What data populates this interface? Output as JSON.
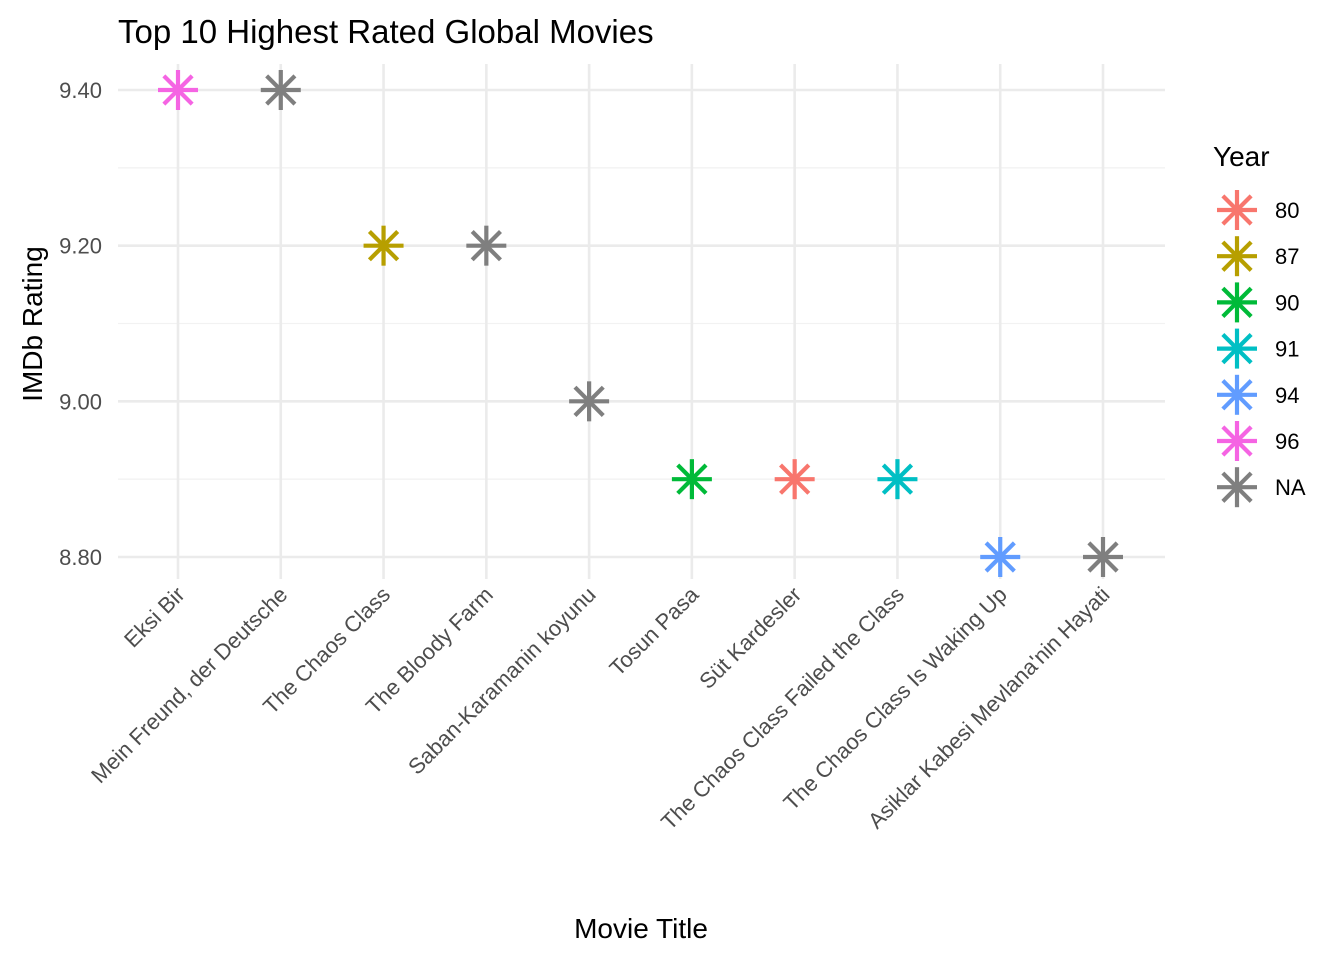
{
  "chart_data": {
    "type": "scatter",
    "title": "Top 10 Highest Rated Global Movies",
    "xlabel": "Movie Title",
    "ylabel": "IMDb Rating",
    "categories": [
      "Eksi Bir",
      "Mein Freund, der Deutsche",
      "The Chaos Class",
      "The Bloody Farm",
      "Saban-Karamanin koyunu",
      "Tosun Pasa",
      "Süt Kardesler",
      "The Chaos Class Failed the Class",
      "The Chaos Class Is Waking Up",
      "Asiklar Kabesi Mevlana'nin Hayati"
    ],
    "points": [
      {
        "x": "Eksi Bir",
        "y": 9.4,
        "year": "96"
      },
      {
        "x": "Mein Freund, der Deutsche",
        "y": 9.4,
        "year": "NA"
      },
      {
        "x": "The Chaos Class",
        "y": 9.2,
        "year": "87"
      },
      {
        "x": "The Bloody Farm",
        "y": 9.2,
        "year": "NA"
      },
      {
        "x": "Saban-Karamanin koyunu",
        "y": 9.0,
        "year": "NA"
      },
      {
        "x": "Tosun Pasa",
        "y": 8.9,
        "year": "90"
      },
      {
        "x": "Süt Kardesler",
        "y": 8.9,
        "year": "80"
      },
      {
        "x": "The Chaos Class Failed the Class",
        "y": 8.9,
        "year": "91"
      },
      {
        "x": "The Chaos Class Is Waking Up",
        "y": 8.8,
        "year": "94"
      },
      {
        "x": "Asiklar Kabesi Mevlana'nin Hayati",
        "y": 8.8,
        "year": "NA"
      }
    ],
    "yticks": [
      "8.80",
      "9.00",
      "9.20",
      "9.40"
    ],
    "ylim": [
      8.79,
      9.41
    ],
    "grid": true,
    "marker": "asterisk",
    "legend": {
      "title": "Year",
      "placement": "right",
      "entries": [
        {
          "label": "80",
          "color": "#F8766D"
        },
        {
          "label": "87",
          "color": "#B79F00"
        },
        {
          "label": "90",
          "color": "#00BA38"
        },
        {
          "label": "91",
          "color": "#00BFC4"
        },
        {
          "label": "94",
          "color": "#619CFF"
        },
        {
          "label": "96",
          "color": "#F564E3"
        },
        {
          "label": "NA",
          "color": "#7F7F7F"
        }
      ]
    }
  }
}
